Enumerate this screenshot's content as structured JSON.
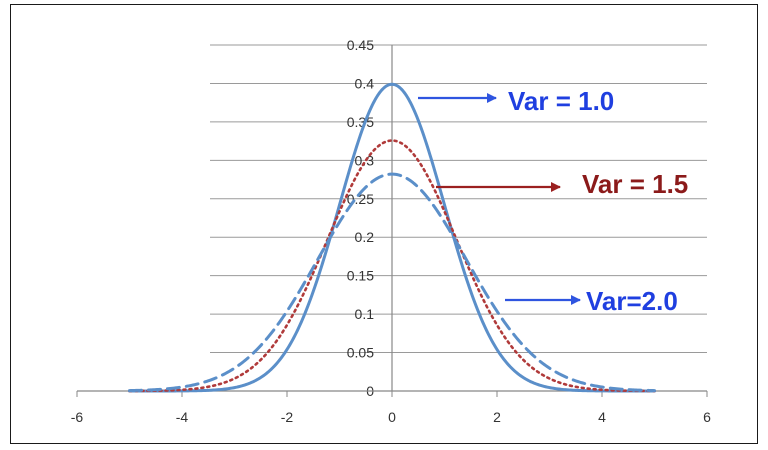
{
  "chart_data": {
    "type": "line",
    "title": "",
    "xlabel": "",
    "ylabel": "",
    "xlim": [
      -6,
      6
    ],
    "ylim": [
      0,
      0.45
    ],
    "x_ticks": [
      "-6",
      "-4",
      "-2",
      "0",
      "2",
      "4",
      "6"
    ],
    "y_ticks": [
      "0",
      "0.05",
      "0.1",
      "0.15",
      "0.2",
      "0.25",
      "0.3",
      "0.35",
      "0.4",
      "0.45"
    ],
    "grid": "horizontal",
    "x_domain": [
      -5,
      5
    ],
    "series": [
      {
        "name": "Var = 1.0",
        "variance": 1.0,
        "peak": 0.399,
        "style": "solid",
        "color": "#5b8fc9"
      },
      {
        "name": "Var = 1.5",
        "variance": 1.5,
        "peak": 0.326,
        "style": "dotted",
        "color": "#b03a3a"
      },
      {
        "name": "Var=2.0",
        "variance": 2.0,
        "peak": 0.282,
        "style": "dashed",
        "color": "#5b8fc9"
      }
    ],
    "annotations": [
      {
        "text": "Var = 1.0",
        "color": "#1f3fe0",
        "arrow_color": "#2f55e0"
      },
      {
        "text": "Var = 1.5",
        "color": "#8b1a1a",
        "arrow_color": "#9b2020"
      },
      {
        "text": "Var=2.0",
        "color": "#1f3fe0",
        "arrow_color": "#2f55e0"
      }
    ]
  }
}
